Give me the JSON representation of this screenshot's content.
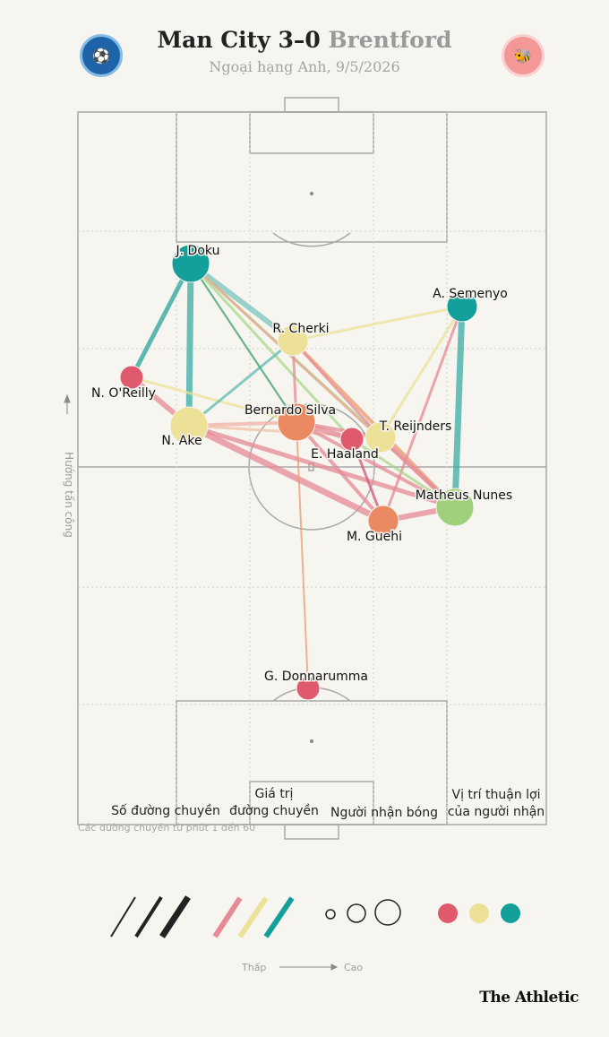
{
  "header": {
    "home_team": "Man City",
    "score": "3–0",
    "away_team": "Brentford",
    "subtitle": "Ngoại hạng Anh, 9/5/2026"
  },
  "crests": {
    "home": "manchester-city-crest",
    "away": "brentford-crest"
  },
  "direction_label": "Hướng tấn công",
  "note": "Các đường chuyền từ phút 1 đến 60",
  "legend": {
    "pass_count": "Số đường chuyền",
    "pass_value_line1": "Giá trị",
    "pass_value_line2": "đường chuyền",
    "receiver": "Người nhận bóng",
    "receiver_position_line1": "Vị trí thuận lợi",
    "receiver_position_line2": "của người nhận",
    "low": "Thấp",
    "high": "Cao"
  },
  "brand": "The Athletic",
  "colors": {
    "low": "#e05a6d",
    "mid": "#ece197",
    "high": "#139f9a",
    "line_pink": "#e58a96",
    "line_orange": "#eb9a70"
  },
  "players": [
    {
      "name": "J. Doku",
      "size": 3,
      "color": "high"
    },
    {
      "name": "A. Semenyo",
      "size": 2,
      "color": "high"
    },
    {
      "name": "R. Cherki",
      "size": 2,
      "color": "mid"
    },
    {
      "name": "N. O'Reilly",
      "size": 1,
      "color": "low"
    },
    {
      "name": "Bernardo Silva",
      "size": 3,
      "color": "orange"
    },
    {
      "name": "T. Reijnders",
      "size": 2,
      "color": "mid"
    },
    {
      "name": "N. Ake",
      "size": 3,
      "color": "mid"
    },
    {
      "name": "E. Haaland",
      "size": 1,
      "color": "low"
    },
    {
      "name": "Matheus Nunes",
      "size": 3,
      "color": "green"
    },
    {
      "name": "M. Guehi",
      "size": 2,
      "color": "orange"
    },
    {
      "name": "G. Donnarumma",
      "size": 1,
      "color": "low"
    }
  ]
}
